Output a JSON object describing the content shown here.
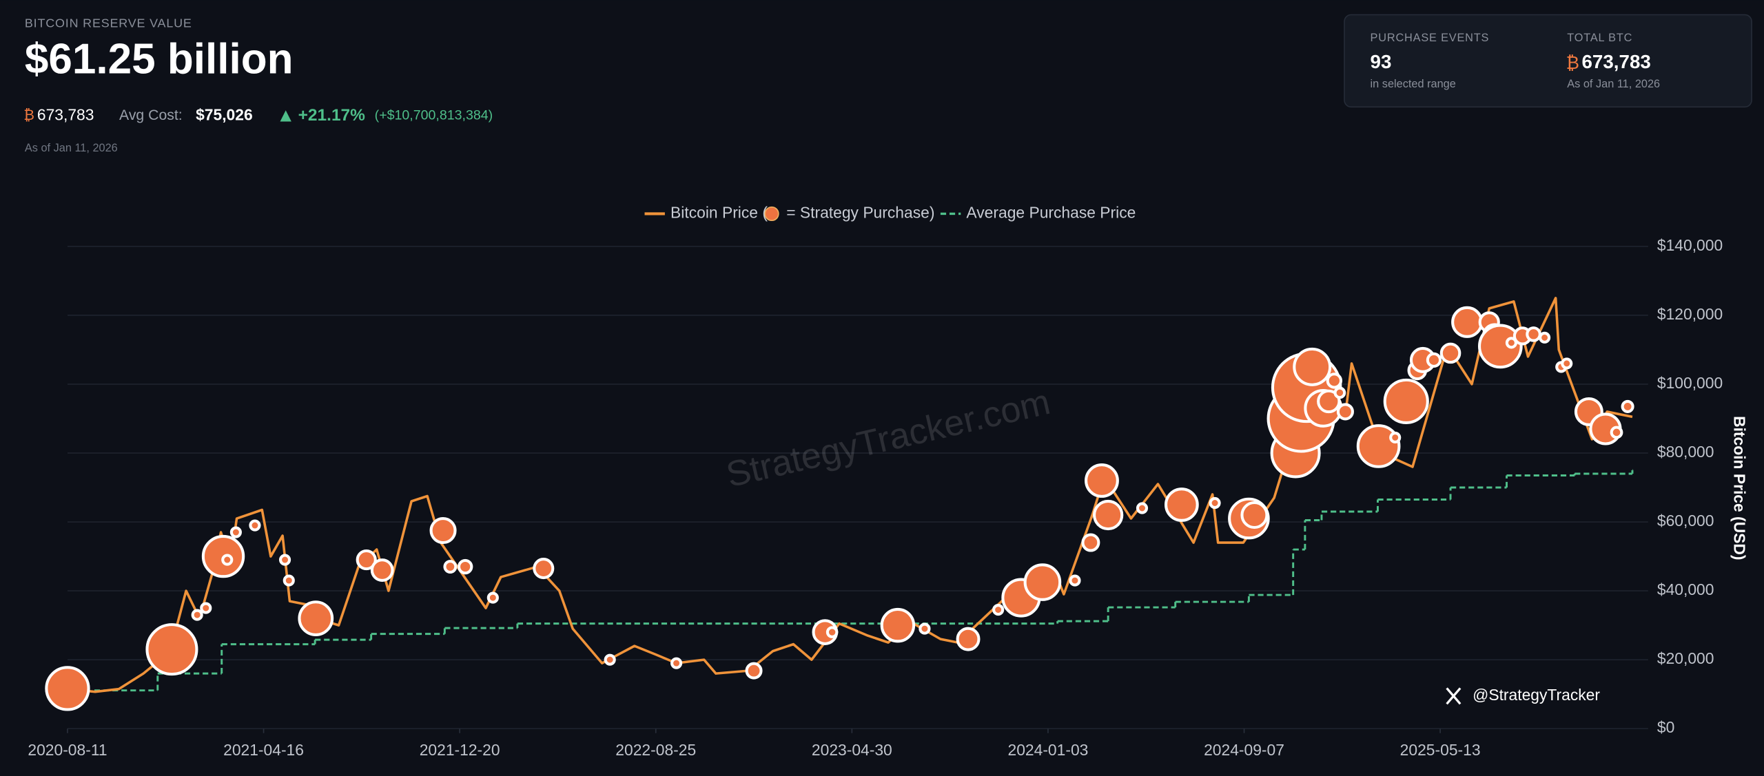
{
  "header": {
    "label": "BITCOIN RESERVE VALUE",
    "value": "$61.25 billion",
    "btc_symbol": "₿",
    "btc_holdings": "673,783",
    "avg_cost_label": "Avg Cost:",
    "avg_cost": "$75,026",
    "change_pct": "+21.17%",
    "change_usd": "(+$10,700,813,384)",
    "as_of": "As of Jan 11, 2026"
  },
  "stats": [
    {
      "label": "PURCHASE EVENTS",
      "value": "93",
      "note": "in selected range"
    },
    {
      "label": "TOTAL BTC",
      "symbol": "₿",
      "value": "673,783",
      "note": "As of Jan 11, 2026"
    }
  ],
  "watermark": "StrategyTracker.com",
  "handle": "@StrategyTracker",
  "chart_data": {
    "type": "line",
    "ylabel": "Bitcoin Price (USD)",
    "xlim": [
      "2020-08-11",
      "2026-01-11"
    ],
    "xticks": [
      "2020-08-11",
      "2021-04-16",
      "2021-12-20",
      "2022-08-25",
      "2023-04-30",
      "2024-01-03",
      "2024-09-07",
      "2025-05-13"
    ],
    "ylim": [
      0,
      140000
    ],
    "yticks": [
      {
        "value": 0,
        "label": "$0"
      },
      {
        "value": 20000,
        "label": "$20,000"
      },
      {
        "value": 40000,
        "label": "$40,000"
      },
      {
        "value": 60000,
        "label": "$60,000"
      },
      {
        "value": 80000,
        "label": "$80,000"
      },
      {
        "value": 100000,
        "label": "$100,000"
      },
      {
        "value": 120000,
        "label": "$120,000"
      },
      {
        "value": 140000,
        "label": "$140,000"
      }
    ],
    "grid": true,
    "series": [
      {
        "name": "Bitcoin Price (",
        "color": "#f0933a",
        "x": [
          "2020-08-11",
          "2020-09-15",
          "2020-10-15",
          "2020-11-15",
          "2020-12-01",
          "2020-12-20",
          "2021-01-08",
          "2021-01-25",
          "2021-02-10",
          "2021-02-21",
          "2021-03-05",
          "2021-03-13",
          "2021-04-14",
          "2021-04-25",
          "2021-05-10",
          "2021-05-19",
          "2021-06-10",
          "2021-06-22",
          "2021-07-20",
          "2021-08-14",
          "2021-09-06",
          "2021-09-21",
          "2021-10-20",
          "2021-11-09",
          "2021-11-26",
          "2021-12-20",
          "2022-01-22",
          "2022-02-10",
          "2022-03-28",
          "2022-04-25",
          "2022-05-12",
          "2022-06-18",
          "2022-07-29",
          "2022-08-25",
          "2022-09-20",
          "2022-10-25",
          "2022-11-09",
          "2022-12-20",
          "2023-01-20",
          "2023-02-15",
          "2023-03-10",
          "2023-04-14",
          "2023-05-20",
          "2023-06-15",
          "2023-07-13",
          "2023-08-20",
          "2023-09-11",
          "2023-10-25",
          "2023-12-08",
          "2024-01-11",
          "2024-01-23",
          "2024-02-28",
          "2024-03-14",
          "2024-04-17",
          "2024-05-21",
          "2024-07-05",
          "2024-07-29",
          "2024-08-05",
          "2024-09-06",
          "2024-10-15",
          "2024-11-12",
          "2024-12-17",
          "2025-01-13",
          "2025-01-21",
          "2025-02-28",
          "2025-04-08",
          "2025-05-22",
          "2025-06-22",
          "2025-07-14",
          "2025-08-14",
          "2025-09-01",
          "2025-10-06",
          "2025-10-10",
          "2025-11-21",
          "2025-12-10",
          "2026-01-11"
        ],
        "values": [
          11500,
          10700,
          11500,
          16000,
          19000,
          23500,
          40000,
          32000,
          45000,
          57000,
          48000,
          61000,
          63500,
          50000,
          56000,
          37000,
          36000,
          32000,
          30000,
          47000,
          52000,
          40000,
          66000,
          67500,
          54000,
          46000,
          35000,
          44000,
          47000,
          40000,
          29000,
          19000,
          24000,
          21500,
          19000,
          20000,
          16000,
          16800,
          22500,
          24500,
          20000,
          30500,
          27000,
          25000,
          31000,
          26000,
          25000,
          34500,
          44000,
          46000,
          39000,
          62000,
          73000,
          61000,
          71000,
          54000,
          68000,
          54000,
          54000,
          67000,
          88000,
          107000,
          91000,
          106000,
          80000,
          76000,
          111000,
          100000,
          122000,
          124000,
          108000,
          125000,
          110000,
          84000,
          92000,
          90500
        ]
      },
      {
        "name": "Average Purchase Price",
        "color": "#4fbf8a",
        "x": [
          "2020-09-14",
          "2020-12-03",
          "2021-02-22",
          "2021-06-20",
          "2021-08-30",
          "2021-12-01",
          "2022-03-03",
          "2024-01-15",
          "2024-03-19",
          "2024-06-12",
          "2024-09-13",
          "2024-11-08",
          "2024-11-23",
          "2024-12-14",
          "2025-02-23",
          "2025-05-26",
          "2025-08-05",
          "2025-10-30",
          "2026-01-11"
        ],
        "values": [
          11100,
          16000,
          24500,
          25800,
          27500,
          29200,
          30500,
          31200,
          35200,
          36800,
          38800,
          52000,
          60500,
          63000,
          66500,
          70000,
          73500,
          74000,
          75026
        ]
      }
    ],
    "purchases": {
      "name": "= Strategy Purchase)",
      "color": "#ee7340",
      "x": [
        "2020-08-11",
        "2020-12-21",
        "2021-01-22",
        "2021-02-02",
        "2021-02-24",
        "2021-03-01",
        "2021-03-12",
        "2021-04-05",
        "2021-05-13",
        "2021-05-18",
        "2021-06-21",
        "2021-08-24",
        "2021-09-13",
        "2021-11-29",
        "2021-12-08",
        "2021-12-27",
        "2022-01-31",
        "2022-04-05",
        "2022-06-28",
        "2022-09-20",
        "2022-12-27",
        "2023-03-27",
        "2023-04-05",
        "2023-06-27",
        "2023-07-31",
        "2023-09-24",
        "2023-11-01",
        "2023-11-30",
        "2023-12-27",
        "2024-02-06",
        "2024-02-26",
        "2024-03-11",
        "2024-03-19",
        "2024-05-01",
        "2024-06-20",
        "2024-08-01",
        "2024-09-13",
        "2024-09-20",
        "2024-11-11",
        "2024-11-18",
        "2024-11-25",
        "2024-12-02",
        "2024-12-16",
        "2024-12-23",
        "2024-12-30",
        "2025-01-06",
        "2025-01-13",
        "2025-02-24",
        "2025-03-17",
        "2025-03-31",
        "2025-04-14",
        "2025-04-21",
        "2025-05-05",
        "2025-05-26",
        "2025-06-16",
        "2025-07-14",
        "2025-07-21",
        "2025-07-28",
        "2025-08-11",
        "2025-08-25",
        "2025-09-08",
        "2025-09-22",
        "2025-10-13",
        "2025-10-20",
        "2025-11-17",
        "2025-12-08",
        "2025-12-22",
        "2026-01-05"
      ],
      "values": [
        11650,
        23000,
        33000,
        35000,
        50000,
        49000,
        57000,
        59000,
        49000,
        43000,
        32000,
        49000,
        46000,
        57500,
        47000,
        47000,
        38000,
        46500,
        20000,
        19000,
        16800,
        28000,
        28000,
        30000,
        29000,
        26000,
        34500,
        38000,
        42500,
        43000,
        54000,
        72000,
        62000,
        64000,
        65000,
        65500,
        61000,
        62000,
        80000,
        90000,
        99000,
        105000,
        93000,
        95000,
        101000,
        97500,
        92000,
        82000,
        84500,
        95000,
        104000,
        107000,
        107000,
        109000,
        118000,
        118000,
        114000,
        111000,
        112000,
        114000,
        114500,
        113500,
        105000,
        106000,
        92000,
        87000,
        86000,
        93500
      ],
      "sizes": [
        21454,
        29646,
        314,
        295,
        19452,
        328,
        262,
        253,
        271,
        229,
        13005,
        3907,
        5050,
        7002,
        1434,
        1914,
        660,
        4167,
        480,
        301,
        2501,
        6455,
        1045,
        12333,
        467,
        5445,
        155,
        16130,
        14620,
        850,
        3000,
        12000,
        9245,
        122,
        11931,
        169,
        18300,
        7420,
        27200,
        51780,
        55500,
        15400,
        15350,
        5262,
        2138,
        1070,
        2530,
        20356,
        130,
        22048,
        3459,
        6556,
        1895,
        4020,
        10100,
        4225,
        6220,
        21021,
        155,
        3081,
        1955,
        850,
        220,
        168,
        8178,
        10624,
        1229,
        1287
      ]
    }
  }
}
